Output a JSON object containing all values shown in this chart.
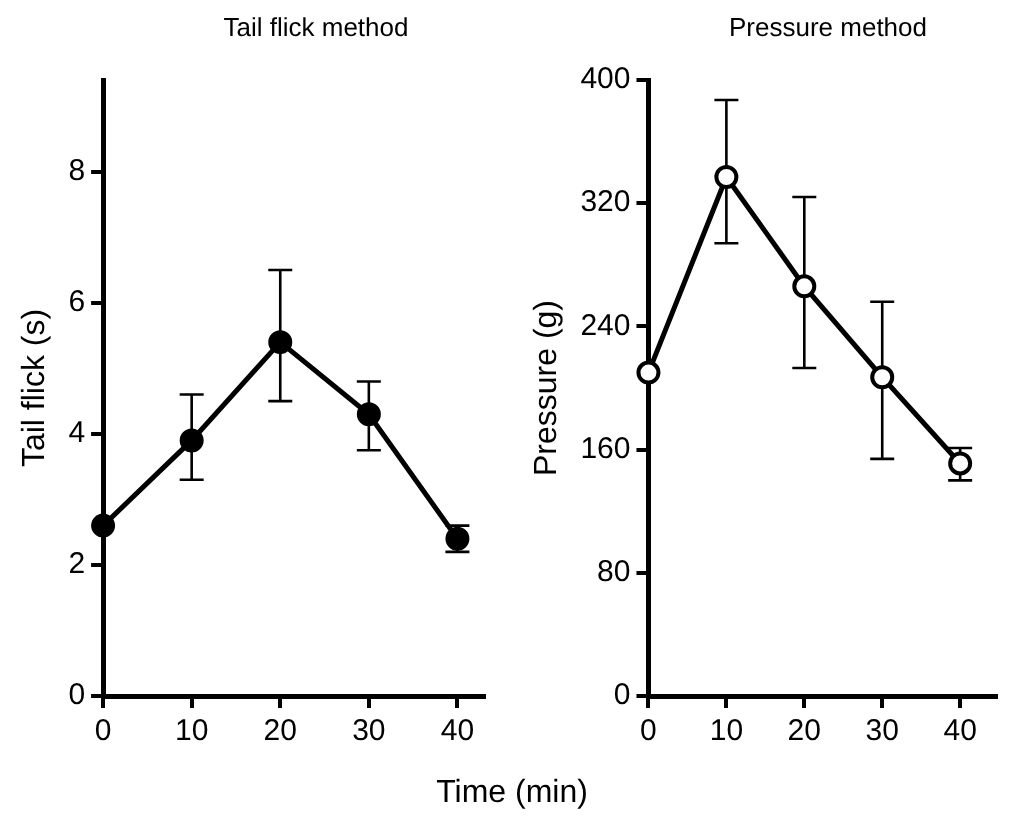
{
  "chart_data": [
    {
      "type": "line",
      "title": "Tail flick method",
      "xlabel": "Time (min)",
      "ylabel": "Tail flick (s)",
      "x": [
        0,
        10,
        20,
        30,
        40
      ],
      "series": [
        {
          "color": "#000000",
          "values": [
            2.6,
            3.9,
            5.4,
            4.3,
            2.4
          ],
          "errors": [
            null,
            [
              3.3,
              4.6
            ],
            [
              4.5,
              6.5
            ],
            [
              3.75,
              4.8
            ],
            [
              2.2,
              2.6
            ]
          ]
        }
      ],
      "xlim": [
        0,
        43
      ],
      "xticks": [
        0,
        10,
        20,
        30,
        40
      ],
      "ylim": [
        0,
        9.4
      ],
      "yticks": [
        0,
        2,
        4,
        6,
        8
      ],
      "grid": false,
      "legend": false,
      "marker": "circle",
      "line_style": "solid"
    },
    {
      "type": "line",
      "title": "Pressure method",
      "ylabel": "Pressure (g)",
      "x": [
        0,
        10,
        20,
        30,
        40
      ],
      "series": [
        {
          "color": "#000000",
          "values": [
            210,
            337,
            266,
            207,
            151
          ],
          "errors": [
            null,
            [
              294,
              387
            ],
            [
              213,
              324
            ],
            [
              154,
              256
            ],
            [
              140,
              161
            ]
          ]
        }
      ],
      "xlim": [
        0,
        44.6
      ],
      "xticks": [
        0,
        10,
        20,
        30,
        40
      ],
      "ylim": [
        0,
        400
      ],
      "yticks": [
        0,
        80,
        160,
        240,
        320,
        400
      ],
      "grid": false,
      "legend": false,
      "marker": "circle",
      "line_style": "solid"
    }
  ]
}
